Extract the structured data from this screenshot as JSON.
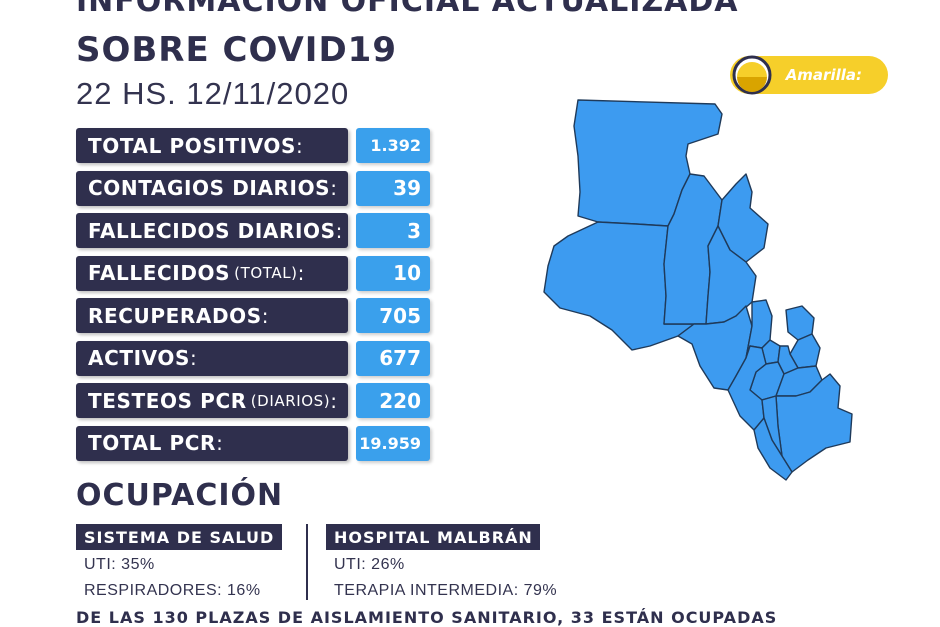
{
  "header": {
    "line1": "INFORMACIÓN OFICIAL ACTUALIZADA",
    "line2": "SOBRE COVID19",
    "datetime": "22 HS. 12/11/2020"
  },
  "badge": {
    "label": "Amarilla:",
    "color": "#f6cf2a"
  },
  "stats": [
    {
      "label": "TOTAL POSITIVOS",
      "sub": "",
      "value": "1.392"
    },
    {
      "label": "CONTAGIOS DIARIOS",
      "sub": "",
      "value": "39"
    },
    {
      "label": "FALLECIDOS DIARIOS",
      "sub": "",
      "value": "3"
    },
    {
      "label": "FALLECIDOS",
      "sub": "(TOTAL)",
      "value": "10"
    },
    {
      "label": "RECUPERADOS",
      "sub": "",
      "value": "705"
    },
    {
      "label": "ACTIVOS",
      "sub": "",
      "value": "677"
    },
    {
      "label": "TESTEOS PCR",
      "sub": "(DIARIOS)",
      "value": "220"
    },
    {
      "label": "TOTAL PCR",
      "sub": "",
      "value": "19.959"
    }
  ],
  "ocupacion": {
    "title": "OCUPACIÓN",
    "sistema_salud": {
      "tag": "SISTEMA DE SALUD",
      "uti": "UTI: 35%",
      "respiradores": "RESPIRADORES: 16%"
    },
    "hospital": {
      "tag": "HOSPITAL MALBRÁN",
      "uti": "UTI: 26%",
      "terapia": "TERAPIA INTERMEDIA: 79%"
    }
  },
  "footer": "DE LAS 130 PLAZAS DE AISLAMIENTO SANITARIO, 33 ESTÁN OCUPADAS",
  "colors": {
    "navy": "#2f2f4d",
    "value_blue": "#3aa0ec",
    "map_blue": "#3d9bf0",
    "yellow": "#f6cf2a"
  }
}
